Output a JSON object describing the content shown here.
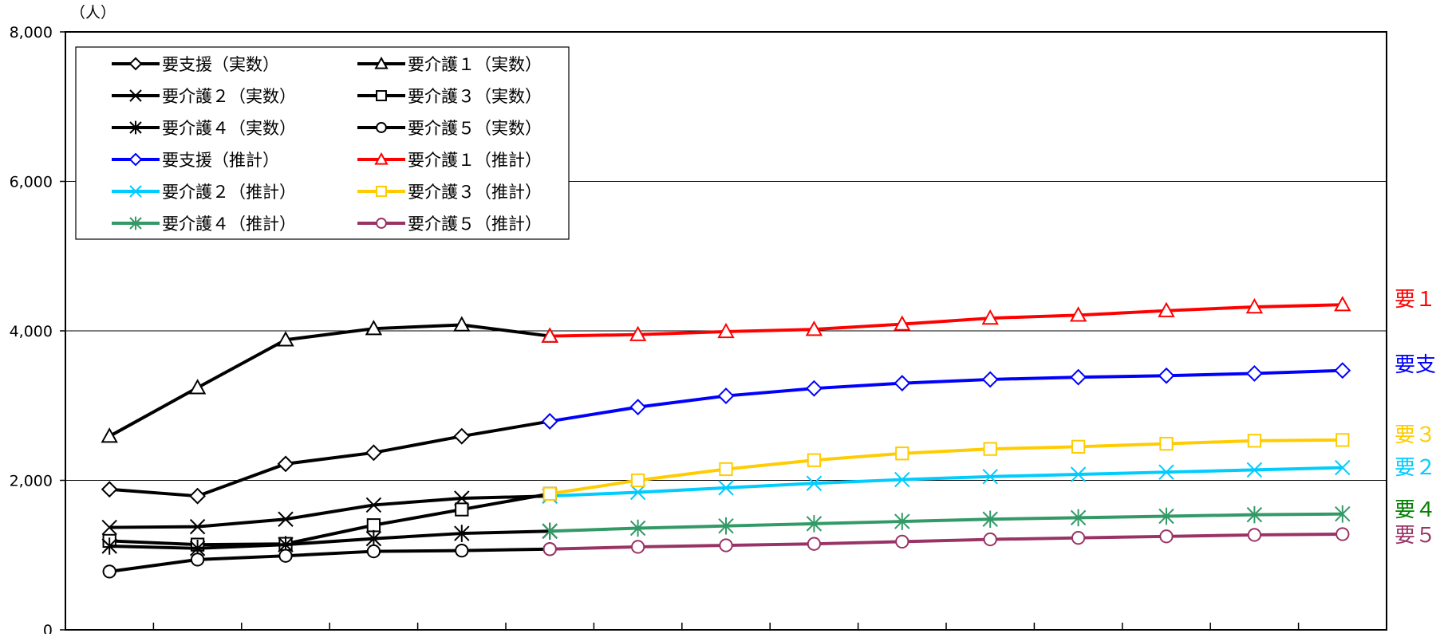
{
  "chart_data": {
    "type": "line",
    "title": "",
    "xlabel": "",
    "ylabel": "（人）",
    "ylim": [
      0,
      8000
    ],
    "y_ticks": [
      "0",
      "2,000",
      "4,000",
      "6,000",
      "8,000"
    ],
    "grid": "horizontal",
    "x_count": 15,
    "legend_position": "top-left",
    "series": [
      {
        "name": "要支援（実数）",
        "group": "actual",
        "marker": "diamond",
        "color": "#000000",
        "x": [
          1,
          2,
          3,
          4,
          5,
          6
        ],
        "values": [
          1880,
          1790,
          2220,
          2370,
          2590,
          2790
        ]
      },
      {
        "name": "要介護１（実数）",
        "group": "actual",
        "marker": "triangle",
        "color": "#000000",
        "x": [
          1,
          2,
          3,
          4,
          5,
          6
        ],
        "values": [
          2590,
          3240,
          3880,
          4030,
          4080,
          3930
        ]
      },
      {
        "name": "要介護２（実数）",
        "group": "actual",
        "marker": "x",
        "color": "#000000",
        "x": [
          1,
          2,
          3,
          4,
          5,
          6
        ],
        "values": [
          1370,
          1380,
          1480,
          1670,
          1760,
          1790
        ]
      },
      {
        "name": "要介護３（実数）",
        "group": "actual",
        "marker": "square",
        "color": "#000000",
        "x": [
          1,
          2,
          3,
          4,
          5,
          6
        ],
        "values": [
          1190,
          1140,
          1150,
          1400,
          1610,
          1820
        ]
      },
      {
        "name": "要介護４（実数）",
        "group": "actual",
        "marker": "asterisk",
        "color": "#000000",
        "x": [
          1,
          2,
          3,
          4,
          5,
          6
        ],
        "values": [
          1120,
          1090,
          1140,
          1220,
          1290,
          1320
        ]
      },
      {
        "name": "要介護５（実数）",
        "group": "actual",
        "marker": "circle",
        "color": "#000000",
        "x": [
          1,
          2,
          3,
          4,
          5,
          6
        ],
        "values": [
          780,
          940,
          990,
          1050,
          1060,
          1080
        ]
      },
      {
        "name": "要支援（推計）",
        "group": "projected",
        "marker": "diamond",
        "color": "#0000ff",
        "x": [
          6,
          7,
          8,
          9,
          10,
          11,
          12,
          13,
          14,
          15
        ],
        "values": [
          2790,
          2980,
          3130,
          3230,
          3300,
          3350,
          3380,
          3400,
          3430,
          3470
        ]
      },
      {
        "name": "要介護１（推計）",
        "group": "projected",
        "marker": "triangle",
        "color": "#ff0000",
        "x": [
          6,
          7,
          8,
          9,
          10,
          11,
          12,
          13,
          14,
          15
        ],
        "values": [
          3930,
          3950,
          3990,
          4020,
          4090,
          4170,
          4210,
          4270,
          4320,
          4350
        ]
      },
      {
        "name": "要介護２（推計）",
        "group": "projected",
        "marker": "x",
        "color": "#00ccff",
        "x": [
          6,
          7,
          8,
          9,
          10,
          11,
          12,
          13,
          14,
          15
        ],
        "values": [
          1790,
          1840,
          1900,
          1960,
          2010,
          2050,
          2080,
          2110,
          2140,
          2170
        ]
      },
      {
        "name": "要介護３（推計）",
        "group": "projected",
        "marker": "square",
        "color": "#ffcc00",
        "x": [
          6,
          7,
          8,
          9,
          10,
          11,
          12,
          13,
          14,
          15
        ],
        "values": [
          1820,
          2000,
          2150,
          2270,
          2360,
          2420,
          2450,
          2490,
          2530,
          2540
        ]
      },
      {
        "name": "要介護４（推計）",
        "group": "projected",
        "marker": "asterisk",
        "color": "#339966",
        "x": [
          6,
          7,
          8,
          9,
          10,
          11,
          12,
          13,
          14,
          15
        ],
        "values": [
          1320,
          1360,
          1390,
          1420,
          1450,
          1480,
          1500,
          1520,
          1540,
          1550
        ]
      },
      {
        "name": "要介護５（推計）",
        "group": "projected",
        "marker": "circle",
        "color": "#993366",
        "x": [
          6,
          7,
          8,
          9,
          10,
          11,
          12,
          13,
          14,
          15
        ],
        "values": [
          1080,
          1110,
          1130,
          1150,
          1180,
          1210,
          1230,
          1250,
          1270,
          1280
        ]
      }
    ],
    "end_labels": [
      {
        "text": "要１",
        "color": "#ff0000",
        "value": 4350
      },
      {
        "text": "要支",
        "color": "#0000ff",
        "value": 3470
      },
      {
        "text": "要３",
        "color": "#ffcc00",
        "value": 2540
      },
      {
        "text": "要２",
        "color": "#00ccff",
        "value": 2170
      },
      {
        "text": "要４",
        "color": "#008000",
        "value": 1550
      },
      {
        "text": "要５",
        "color": "#993366",
        "value": 1280
      }
    ]
  }
}
